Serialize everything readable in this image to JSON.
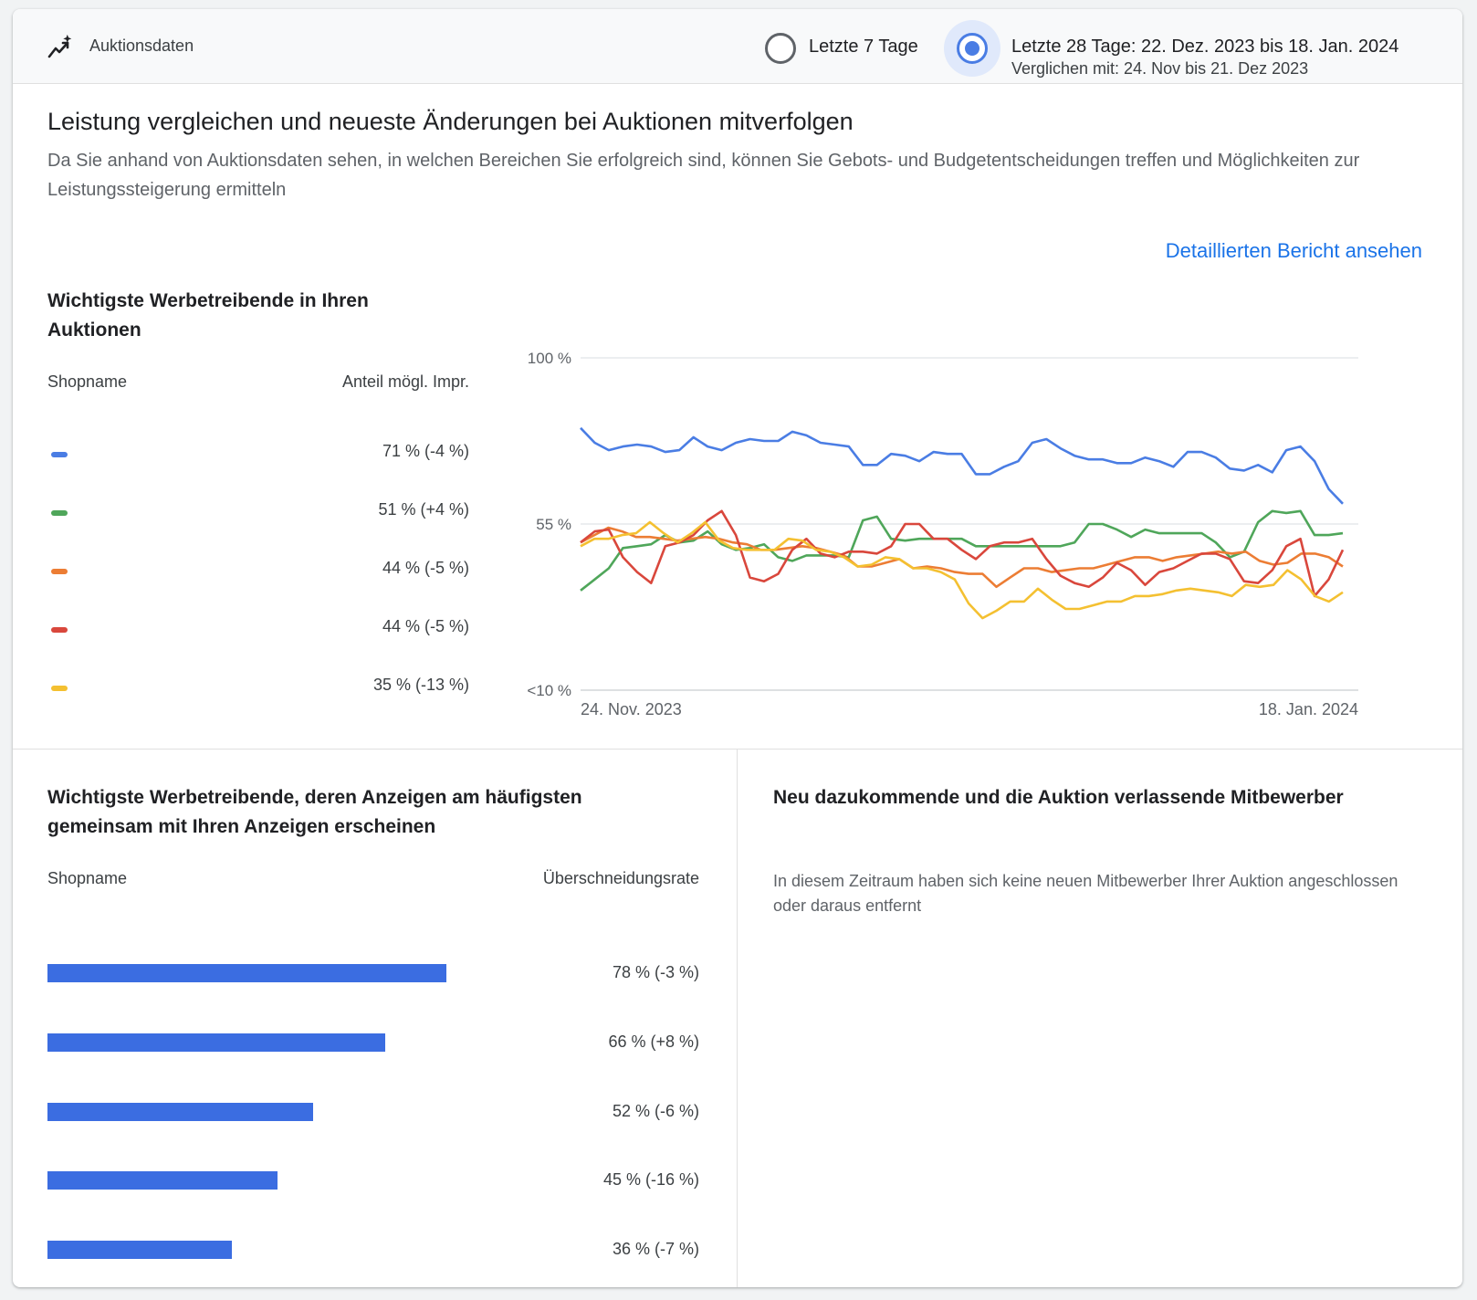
{
  "header": {
    "app_title": "Auktionsdaten",
    "icon": "trending-sparkle-icon",
    "options": [
      {
        "label": "Letzte 7 Tage",
        "selected": false
      },
      {
        "label": "Letzte 28 Tage: 22. Dez. 2023 bis 18. Jan. 2024",
        "sub": "Verglichen mit: 24. Nov bis 21. Dez 2023",
        "selected": true
      }
    ]
  },
  "intro": {
    "headline": "Leistung vergleichen und neueste Änderungen bei Auktionen mitverfolgen",
    "description": "Da Sie anhand von Auktionsdaten sehen, in welchen Bereichen Sie erfolgreich sind, können Sie Gebots- und Budgetentscheidungen treffen und Möglichkeiten zur Leistungssteigerung ermitteln",
    "report_link": "Detaillierten Bericht ansehen"
  },
  "top_advertisers": {
    "title": "Wichtigste Werbetreibende in Ihren Auktionen",
    "col_name": "Shopname",
    "col_value": "Anteil mögl. Impr.",
    "rows": [
      {
        "value": "71 % (-4 %)",
        "color": "#4a7de4"
      },
      {
        "value": "51 % (+4 %)",
        "color": "#4fa65a"
      },
      {
        "value": "44 % (-5 %)",
        "color": "#ec7d34"
      },
      {
        "value": "44 % (-5 %)",
        "color": "#d9473c"
      },
      {
        "value": "35 % (-13 %)",
        "color": "#f4c031"
      }
    ]
  },
  "chart_data": {
    "type": "line",
    "y_tick_labels": [
      "100 %",
      "55 %",
      "<10 %"
    ],
    "y_ticks": [
      100,
      55,
      10
    ],
    "ylim": [
      10,
      100
    ],
    "x_tick_labels": [
      "24. Nov. 2023",
      "18. Jan. 2024"
    ],
    "grid": true,
    "series": [
      {
        "color": "#4a7de4",
        "values": [
          81,
          77,
          75,
          76,
          76.5,
          76,
          74.5,
          75,
          78.5,
          76,
          75,
          77,
          78,
          77.5,
          77.5,
          80,
          79,
          77,
          76.5,
          76,
          71,
          71,
          74,
          73.5,
          72,
          74.5,
          74,
          74,
          68.5,
          68.5,
          70.5,
          72,
          77,
          78,
          75.5,
          73.5,
          72.5,
          72.5,
          71.5,
          71.5,
          73,
          72,
          70.5,
          74.5,
          74.5,
          73,
          70,
          69.5,
          71,
          69,
          75,
          76,
          72,
          64.5,
          60.5
        ]
      },
      {
        "color": "#4fa65a",
        "values": [
          37,
          40,
          43,
          48.5,
          49,
          49.5,
          52,
          50,
          50.5,
          53,
          49.5,
          48,
          48.5,
          49.5,
          46,
          45,
          46.5,
          46.5,
          46.5,
          46,
          56,
          57,
          51,
          50.5,
          51,
          51,
          51,
          51,
          49,
          49,
          49,
          49,
          49,
          49,
          49,
          50,
          55,
          55,
          53.5,
          51.5,
          53.5,
          52.5,
          52.5,
          52.5,
          52.5,
          50,
          46,
          47.5,
          55.5,
          58.5,
          58,
          58.5,
          52,
          52,
          52.5
        ]
      },
      {
        "color": "#ec7d34",
        "values": [
          50,
          52,
          54,
          53,
          51.5,
          51.5,
          51,
          50.5,
          51,
          51.5,
          51,
          50,
          49.5,
          48,
          48,
          48.5,
          49,
          48.5,
          47.5,
          46.5,
          43.5,
          43.5,
          44.5,
          45.5,
          43,
          43.5,
          43,
          42,
          41.5,
          41.5,
          38,
          40.5,
          43,
          43,
          42,
          42.5,
          43,
          43,
          44,
          45,
          46,
          46,
          45,
          46,
          46.5,
          47,
          47.5,
          47,
          47.5,
          45,
          44,
          44.5,
          47,
          47,
          46,
          43.5
        ]
      },
      {
        "color": "#d9473c",
        "values": [
          50,
          53,
          53.5,
          46,
          42,
          39,
          49,
          50,
          52,
          56,
          58.5,
          52,
          40.5,
          39.5,
          41.5,
          48,
          51,
          47,
          46,
          47.5,
          47.5,
          47,
          49,
          55,
          55,
          51,
          51,
          48,
          45.5,
          49,
          50,
          50,
          51,
          45.5,
          41,
          39,
          38,
          40.5,
          44.5,
          42.5,
          38.5,
          42,
          43,
          45,
          47,
          47,
          45.5,
          39.5,
          39,
          42.5,
          49,
          51,
          35.5,
          40,
          48
        ]
      },
      {
        "color": "#f4c031",
        "values": [
          49,
          51,
          51,
          52,
          52.5,
          55.5,
          52.5,
          50,
          52.5,
          55.5,
          50.5,
          48.5,
          48,
          48,
          48,
          51,
          50.5,
          48,
          47.5,
          46,
          43.5,
          44,
          46,
          45.5,
          43,
          43,
          42,
          40,
          33.5,
          29.5,
          31.5,
          34,
          34,
          37.5,
          34.5,
          32,
          32,
          33,
          34,
          34,
          35.5,
          35.5,
          36,
          37,
          37.5,
          37,
          36.5,
          35.5,
          38.5,
          38,
          38.5,
          42.5,
          40,
          35.5,
          34,
          36.5
        ]
      }
    ]
  },
  "overlap": {
    "title": "Wichtigste Werbetreibende, deren Anzeigen am häufigsten gemeinsam mit Ihren Anzeigen erscheinen",
    "col_name": "Shopname",
    "col_value": "Überschneidungsrate",
    "bar_color": "#3b6de1",
    "rows": [
      {
        "value": "78 % (-3 %)",
        "rate": 78
      },
      {
        "value": "66 % (+8 %)",
        "rate": 66
      },
      {
        "value": "52 % (-6 %)",
        "rate": 52
      },
      {
        "value": "45 % (-16 %)",
        "rate": 45
      },
      {
        "value": "36 % (-7 %)",
        "rate": 36
      }
    ]
  },
  "competitors": {
    "title": "Neu dazukommende und die Auktion verlassende Mitbewerber",
    "message": "In diesem Zeitraum haben sich keine neuen Mitbewerber Ihrer Auktion angeschlossen oder daraus entfernt"
  }
}
